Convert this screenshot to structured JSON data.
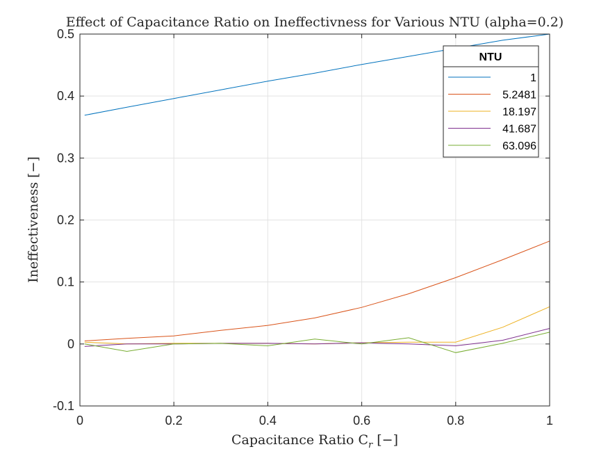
{
  "chart_data": {
    "type": "line",
    "title": "Effect of Capacitance Ratio on Ineffectivness for Various NTU (alpha=0.2)",
    "xlabel_main": "Capacitance Ratio C",
    "xlabel_sub": "r",
    "xlabel_tail": " [−]",
    "ylabel": "Ineffectiveness [−]",
    "xlim": [
      0,
      1
    ],
    "ylim": [
      -0.1,
      0.5
    ],
    "xticks": [
      0,
      0.2,
      0.4,
      0.6,
      0.8,
      1
    ],
    "xtick_labels": [
      "0",
      "0.2",
      "0.4",
      "0.6",
      "0.8",
      "1"
    ],
    "yticks": [
      -0.1,
      0,
      0.1,
      0.2,
      0.3,
      0.4,
      0.5
    ],
    "ytick_labels": [
      "-0.1",
      "0",
      "0.1",
      "0.2",
      "0.3",
      "0.4",
      "0.5"
    ],
    "grid": true,
    "legend": {
      "title": "NTU",
      "placement": "top-right"
    },
    "x": [
      0.01,
      0.1,
      0.2,
      0.3,
      0.4,
      0.5,
      0.6,
      0.7,
      0.8,
      0.9,
      1.0
    ],
    "series": [
      {
        "name": "1",
        "color": "#0072BD",
        "values": [
          0.369,
          0.382,
          0.396,
          0.41,
          0.424,
          0.437,
          0.451,
          0.464,
          0.477,
          0.49,
          0.5
        ]
      },
      {
        "name": "5.2481",
        "color": "#D95319",
        "values": [
          0.005,
          0.009,
          0.013,
          0.022,
          0.03,
          0.042,
          0.059,
          0.081,
          0.107,
          0.136,
          0.166
        ]
      },
      {
        "name": "18.197",
        "color": "#EDB120",
        "values": [
          0.003,
          0.0,
          0.001,
          0.001,
          0.001,
          0.0,
          0.002,
          0.003,
          0.003,
          0.027,
          0.06
        ]
      },
      {
        "name": "41.687",
        "color": "#7E2F8E",
        "values": [
          -0.004,
          0.0,
          0.0,
          0.001,
          0.001,
          0.0,
          0.002,
          0.0,
          -0.003,
          0.006,
          0.025
        ]
      },
      {
        "name": "63.096",
        "color": "#77AC30",
        "values": [
          0.0,
          -0.012,
          0.0,
          0.001,
          -0.003,
          0.008,
          0.0,
          0.01,
          -0.014,
          0.001,
          0.019
        ]
      }
    ]
  }
}
